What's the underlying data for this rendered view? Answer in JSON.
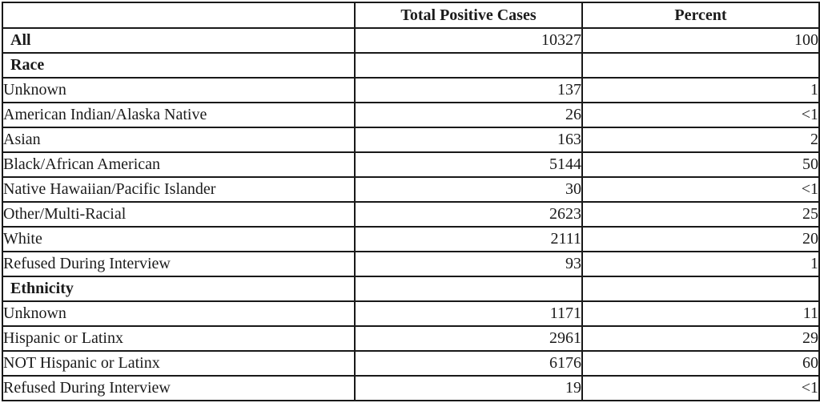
{
  "table": {
    "header": {
      "category": "",
      "cases": "Total Positive Cases",
      "percent": "Percent"
    },
    "rows": [
      {
        "label": "All",
        "bold": true,
        "indent": false,
        "cases": "10327",
        "percent": "100"
      },
      {
        "label": "Race",
        "bold": true,
        "indent": false,
        "cases": "",
        "percent": ""
      },
      {
        "label": "Unknown",
        "bold": false,
        "indent": true,
        "cases": "137",
        "percent": "1"
      },
      {
        "label": "American Indian/Alaska Native",
        "bold": false,
        "indent": true,
        "cases": "26",
        "percent": "<1"
      },
      {
        "label": "Asian",
        "bold": false,
        "indent": true,
        "cases": "163",
        "percent": "2"
      },
      {
        "label": "Black/African American",
        "bold": false,
        "indent": true,
        "cases": "5144",
        "percent": "50"
      },
      {
        "label": "Native Hawaiian/Pacific Islander",
        "bold": false,
        "indent": true,
        "cases": "30",
        "percent": "<1"
      },
      {
        "label": "Other/Multi-Racial",
        "bold": false,
        "indent": true,
        "cases": "2623",
        "percent": "25"
      },
      {
        "label": "White",
        "bold": false,
        "indent": true,
        "cases": "2111",
        "percent": "20"
      },
      {
        "label": "Refused During Interview",
        "bold": false,
        "indent": true,
        "cases": "93",
        "percent": "1"
      },
      {
        "label": "Ethnicity",
        "bold": true,
        "indent": false,
        "cases": "",
        "percent": ""
      },
      {
        "label": "Unknown",
        "bold": false,
        "indent": true,
        "cases": "1171",
        "percent": "11"
      },
      {
        "label": "Hispanic or Latinx",
        "bold": false,
        "indent": true,
        "cases": "2961",
        "percent": "29"
      },
      {
        "label": "NOT Hispanic or Latinx",
        "bold": false,
        "indent": true,
        "cases": "6176",
        "percent": "60"
      },
      {
        "label": "Refused During Interview",
        "bold": false,
        "indent": true,
        "cases": "19",
        "percent": "<1"
      }
    ],
    "colors": {
      "border": "#191919",
      "text": "#1b1b1b",
      "background": "#ffffff"
    }
  }
}
